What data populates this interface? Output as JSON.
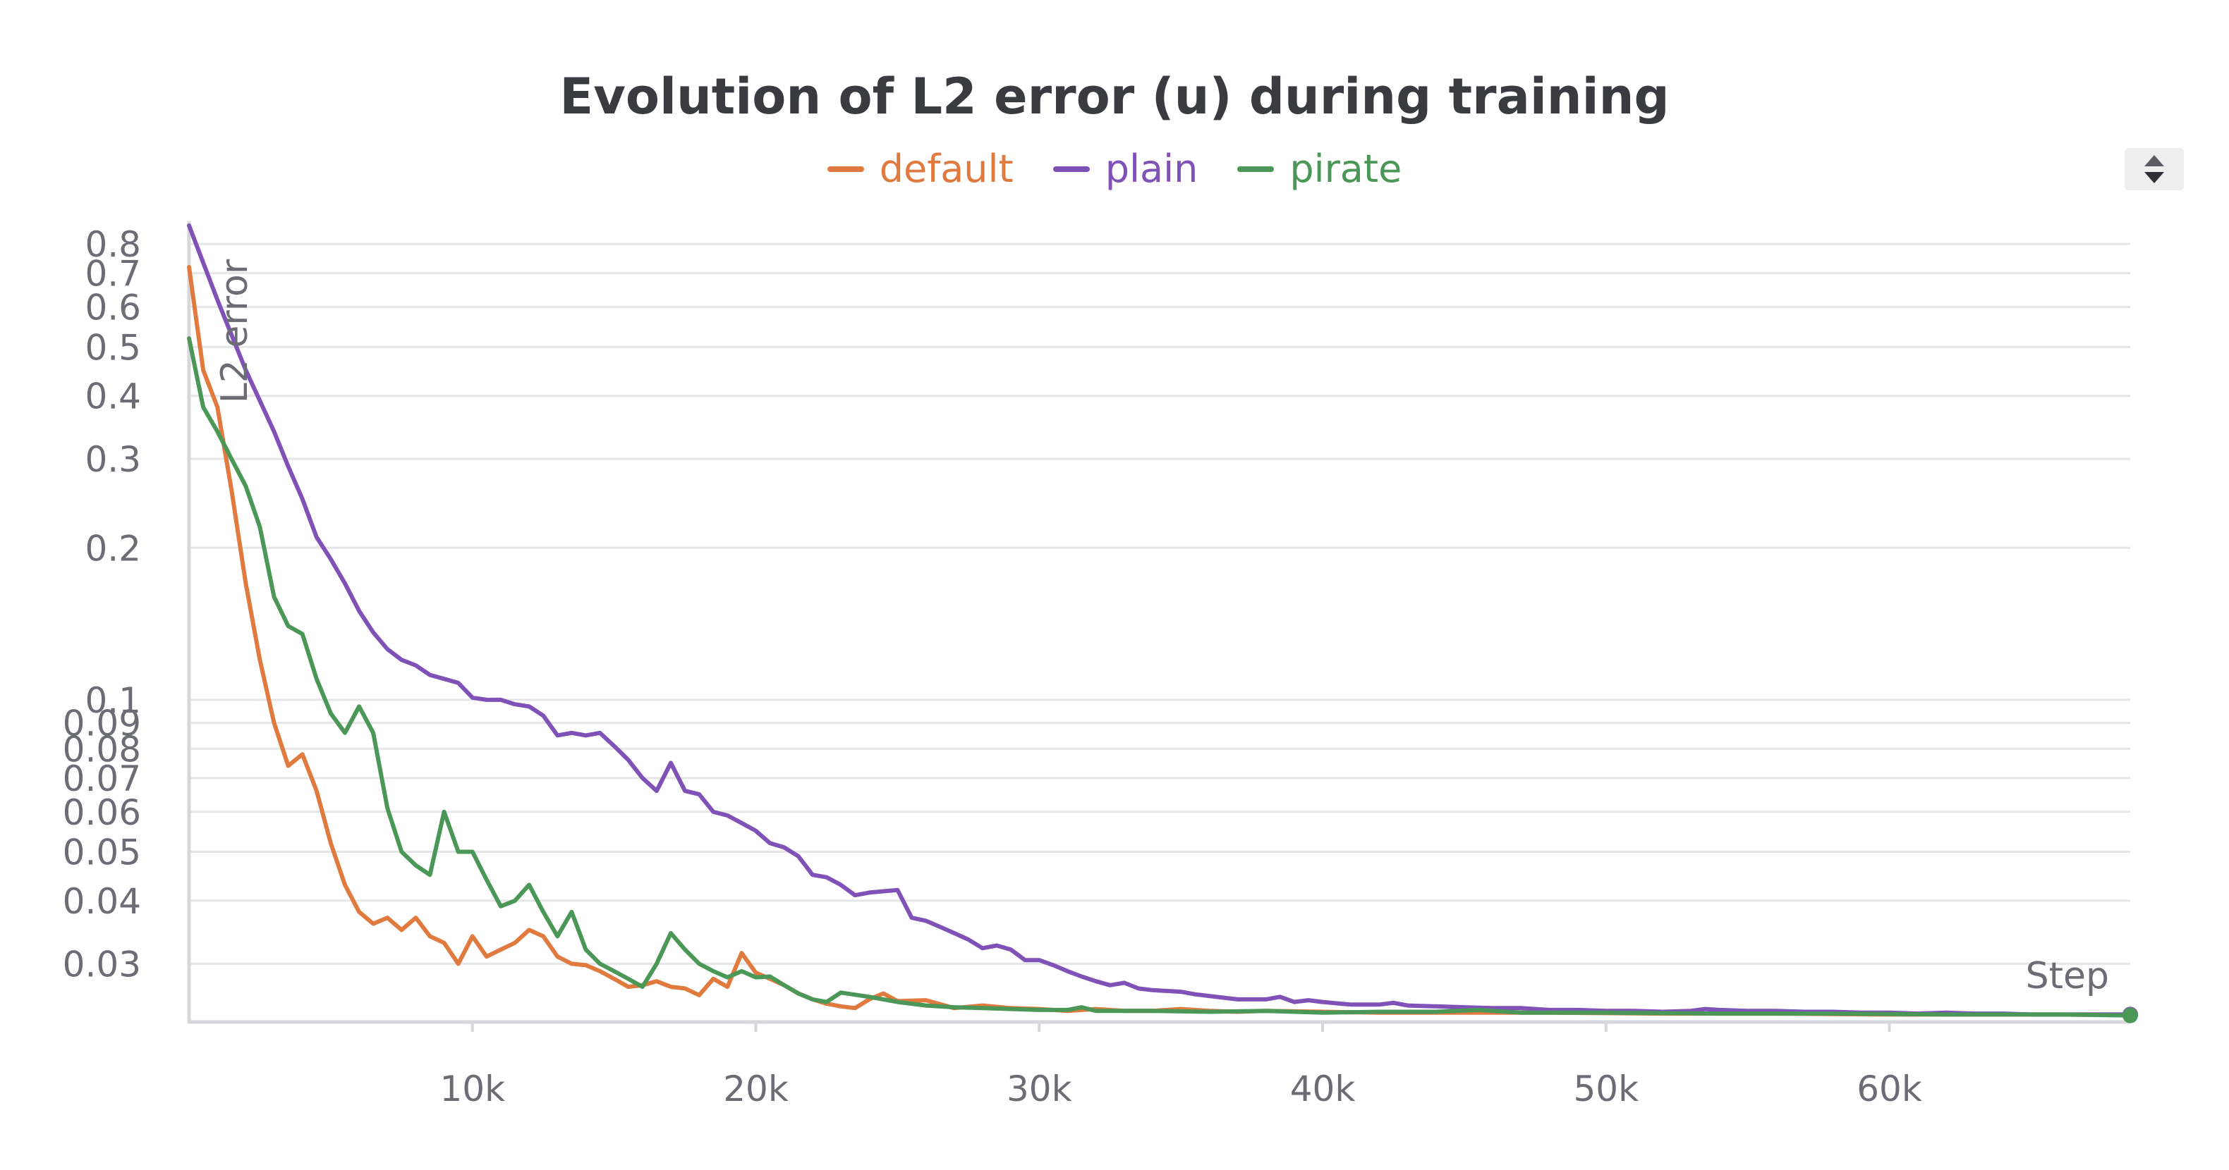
{
  "chart_data": {
    "type": "line",
    "title": "Evolution of L2 error (u) during training",
    "xlabel": "Step",
    "ylabel": "L2 error",
    "yscale": "log",
    "xlim": [
      0,
      68500
    ],
    "ylim": [
      0.023,
      0.87
    ],
    "x_ticks": [
      10000,
      20000,
      30000,
      40000,
      50000,
      60000
    ],
    "x_tick_labels": [
      "10k",
      "20k",
      "30k",
      "40k",
      "50k",
      "60k"
    ],
    "y_ticks": [
      0.03,
      0.04,
      0.05,
      0.06,
      0.07,
      0.08,
      0.09,
      0.1,
      0.2,
      0.3,
      0.4,
      0.5,
      0.6,
      0.7,
      0.8
    ],
    "y_tick_labels": [
      "0.03",
      "0.04",
      "0.05",
      "0.06",
      "0.07",
      "0.08",
      "0.09",
      "0.1",
      "0.2",
      "0.3",
      "0.4",
      "0.5",
      "0.6",
      "0.7",
      "0.8"
    ],
    "legend": {
      "placement": "top-center"
    },
    "series": [
      {
        "name": "default",
        "color": "#e07a3f",
        "points": [
          [
            0,
            0.72
          ],
          [
            500,
            0.45
          ],
          [
            1000,
            0.38
          ],
          [
            1500,
            0.26
          ],
          [
            2000,
            0.17
          ],
          [
            2500,
            0.12
          ],
          [
            3000,
            0.09
          ],
          [
            3500,
            0.074
          ],
          [
            4000,
            0.078
          ],
          [
            4500,
            0.066
          ],
          [
            5000,
            0.052
          ],
          [
            5500,
            0.043
          ],
          [
            6000,
            0.038
          ],
          [
            6500,
            0.036
          ],
          [
            7000,
            0.037
          ],
          [
            7500,
            0.035
          ],
          [
            8000,
            0.037
          ],
          [
            8500,
            0.034
          ],
          [
            9000,
            0.033
          ],
          [
            9500,
            0.03
          ],
          [
            10000,
            0.034
          ],
          [
            10500,
            0.031
          ],
          [
            11000,
            0.032
          ],
          [
            11500,
            0.033
          ],
          [
            12000,
            0.035
          ],
          [
            12500,
            0.034
          ],
          [
            13000,
            0.031
          ],
          [
            13500,
            0.03
          ],
          [
            14000,
            0.0298
          ],
          [
            14500,
            0.029
          ],
          [
            15000,
            0.028
          ],
          [
            15500,
            0.027
          ],
          [
            16000,
            0.0272
          ],
          [
            16500,
            0.0277
          ],
          [
            17000,
            0.027
          ],
          [
            17500,
            0.0268
          ],
          [
            18000,
            0.026
          ],
          [
            18500,
            0.028
          ],
          [
            19000,
            0.027
          ],
          [
            19500,
            0.0315
          ],
          [
            20000,
            0.0288
          ],
          [
            20500,
            0.028
          ],
          [
            21000,
            0.0272
          ],
          [
            21500,
            0.0262
          ],
          [
            22000,
            0.0255
          ],
          [
            22500,
            0.025
          ],
          [
            23000,
            0.0247
          ],
          [
            23500,
            0.0245
          ],
          [
            24000,
            0.0255
          ],
          [
            24500,
            0.0262
          ],
          [
            25000,
            0.0253
          ],
          [
            26000,
            0.0254
          ],
          [
            27000,
            0.0245
          ],
          [
            28000,
            0.0248
          ],
          [
            29000,
            0.0245
          ],
          [
            30000,
            0.0244
          ],
          [
            31000,
            0.0242
          ],
          [
            32000,
            0.0244
          ],
          [
            33000,
            0.0242
          ],
          [
            34000,
            0.0242
          ],
          [
            35000,
            0.0244
          ],
          [
            36000,
            0.0242
          ],
          [
            37000,
            0.0241
          ],
          [
            38000,
            0.0242
          ],
          [
            40000,
            0.0241
          ],
          [
            42000,
            0.024
          ],
          [
            45000,
            0.024
          ],
          [
            48000,
            0.024
          ],
          [
            52000,
            0.0239
          ],
          [
            56000,
            0.0239
          ],
          [
            60000,
            0.0238
          ],
          [
            64000,
            0.0238
          ],
          [
            68500,
            0.0238
          ]
        ]
      },
      {
        "name": "plain",
        "color": "#8052b8",
        "points": [
          [
            0,
            0.87
          ],
          [
            1000,
            0.62
          ],
          [
            2000,
            0.45
          ],
          [
            3000,
            0.34
          ],
          [
            3500,
            0.29
          ],
          [
            4000,
            0.25
          ],
          [
            4500,
            0.21
          ],
          [
            5000,
            0.19
          ],
          [
            5500,
            0.17
          ],
          [
            6000,
            0.15
          ],
          [
            6500,
            0.136
          ],
          [
            7000,
            0.126
          ],
          [
            7500,
            0.12
          ],
          [
            8000,
            0.117
          ],
          [
            8500,
            0.112
          ],
          [
            9000,
            0.11
          ],
          [
            9500,
            0.108
          ],
          [
            10000,
            0.101
          ],
          [
            10500,
            0.1
          ],
          [
            11000,
            0.1
          ],
          [
            11500,
            0.098
          ],
          [
            12000,
            0.097
          ],
          [
            12500,
            0.093
          ],
          [
            13000,
            0.085
          ],
          [
            13500,
            0.086
          ],
          [
            14000,
            0.085
          ],
          [
            14500,
            0.086
          ],
          [
            15000,
            0.081
          ],
          [
            15500,
            0.076
          ],
          [
            16000,
            0.07
          ],
          [
            16500,
            0.066
          ],
          [
            17000,
            0.075
          ],
          [
            17500,
            0.066
          ],
          [
            18000,
            0.065
          ],
          [
            18500,
            0.06
          ],
          [
            19000,
            0.059
          ],
          [
            19500,
            0.057
          ],
          [
            20000,
            0.055
          ],
          [
            20500,
            0.052
          ],
          [
            21000,
            0.051
          ],
          [
            21500,
            0.049
          ],
          [
            22000,
            0.045
          ],
          [
            22500,
            0.0445
          ],
          [
            23000,
            0.043
          ],
          [
            23500,
            0.041
          ],
          [
            24000,
            0.0415
          ],
          [
            25000,
            0.042
          ],
          [
            25500,
            0.037
          ],
          [
            26000,
            0.0365
          ],
          [
            26500,
            0.0355
          ],
          [
            27000,
            0.0345
          ],
          [
            27500,
            0.0335
          ],
          [
            28000,
            0.0322
          ],
          [
            28500,
            0.0326
          ],
          [
            29000,
            0.032
          ],
          [
            29500,
            0.0305
          ],
          [
            30000,
            0.0305
          ],
          [
            30500,
            0.0298
          ],
          [
            31000,
            0.029
          ],
          [
            31500,
            0.0283
          ],
          [
            32000,
            0.0277
          ],
          [
            32500,
            0.0272
          ],
          [
            33000,
            0.0275
          ],
          [
            33500,
            0.0268
          ],
          [
            34000,
            0.0266
          ],
          [
            35000,
            0.0264
          ],
          [
            35500,
            0.0261
          ],
          [
            36000,
            0.0259
          ],
          [
            37000,
            0.0255
          ],
          [
            38000,
            0.0255
          ],
          [
            38500,
            0.0258
          ],
          [
            39000,
            0.0252
          ],
          [
            39500,
            0.0254
          ],
          [
            40000,
            0.0252
          ],
          [
            41000,
            0.0249
          ],
          [
            42000,
            0.0249
          ],
          [
            42500,
            0.0251
          ],
          [
            43000,
            0.0248
          ],
          [
            44000,
            0.0247
          ],
          [
            45000,
            0.0246
          ],
          [
            46000,
            0.0245
          ],
          [
            47000,
            0.0245
          ],
          [
            48000,
            0.0243
          ],
          [
            49000,
            0.0243
          ],
          [
            50000,
            0.0242
          ],
          [
            51000,
            0.0242
          ],
          [
            52000,
            0.0241
          ],
          [
            53000,
            0.0242
          ],
          [
            53500,
            0.0244
          ],
          [
            54000,
            0.0243
          ],
          [
            55000,
            0.0242
          ],
          [
            56000,
            0.0242
          ],
          [
            57000,
            0.0241
          ],
          [
            58000,
            0.0241
          ],
          [
            59000,
            0.024
          ],
          [
            60000,
            0.024
          ],
          [
            61000,
            0.0239
          ],
          [
            62000,
            0.024
          ],
          [
            63000,
            0.0239
          ],
          [
            64000,
            0.0239
          ],
          [
            65000,
            0.0238
          ],
          [
            66000,
            0.0238
          ],
          [
            67000,
            0.0238
          ],
          [
            68500,
            0.0238
          ]
        ]
      },
      {
        "name": "pirate",
        "color": "#4b9757",
        "points": [
          [
            0,
            0.52
          ],
          [
            500,
            0.38
          ],
          [
            1000,
            0.34
          ],
          [
            1500,
            0.3
          ],
          [
            2000,
            0.265
          ],
          [
            2500,
            0.22
          ],
          [
            3000,
            0.16
          ],
          [
            3500,
            0.14
          ],
          [
            4000,
            0.135
          ],
          [
            4500,
            0.11
          ],
          [
            5000,
            0.094
          ],
          [
            5500,
            0.086
          ],
          [
            6000,
            0.097
          ],
          [
            6500,
            0.086
          ],
          [
            7000,
            0.061
          ],
          [
            7500,
            0.05
          ],
          [
            8000,
            0.047
          ],
          [
            8500,
            0.045
          ],
          [
            9000,
            0.06
          ],
          [
            9500,
            0.05
          ],
          [
            10000,
            0.05
          ],
          [
            10500,
            0.044
          ],
          [
            11000,
            0.039
          ],
          [
            11500,
            0.04
          ],
          [
            12000,
            0.043
          ],
          [
            12500,
            0.038
          ],
          [
            13000,
            0.034
          ],
          [
            13500,
            0.038
          ],
          [
            14000,
            0.032
          ],
          [
            14500,
            0.03
          ],
          [
            15000,
            0.029
          ],
          [
            15500,
            0.028
          ],
          [
            16000,
            0.027
          ],
          [
            16500,
            0.03
          ],
          [
            17000,
            0.0345
          ],
          [
            17500,
            0.032
          ],
          [
            18000,
            0.03
          ],
          [
            18500,
            0.029
          ],
          [
            19000,
            0.0282
          ],
          [
            19500,
            0.029
          ],
          [
            20000,
            0.0282
          ],
          [
            20500,
            0.0283
          ],
          [
            21000,
            0.0272
          ],
          [
            21500,
            0.0262
          ],
          [
            22000,
            0.0255
          ],
          [
            22500,
            0.0252
          ],
          [
            23000,
            0.0263
          ],
          [
            24000,
            0.0258
          ],
          [
            25000,
            0.0252
          ],
          [
            26000,
            0.0248
          ],
          [
            27000,
            0.0246
          ],
          [
            28000,
            0.0245
          ],
          [
            30000,
            0.0243
          ],
          [
            31000,
            0.0243
          ],
          [
            31500,
            0.0246
          ],
          [
            32000,
            0.0242
          ],
          [
            34000,
            0.0242
          ],
          [
            36000,
            0.0241
          ],
          [
            38000,
            0.0242
          ],
          [
            40000,
            0.024
          ],
          [
            42000,
            0.0241
          ],
          [
            44000,
            0.0241
          ],
          [
            45500,
            0.0243
          ],
          [
            47000,
            0.024
          ],
          [
            50000,
            0.024
          ],
          [
            54000,
            0.0239
          ],
          [
            58000,
            0.0239
          ],
          [
            62000,
            0.0238
          ],
          [
            66000,
            0.0238
          ],
          [
            68500,
            0.0237
          ]
        ]
      }
    ]
  }
}
